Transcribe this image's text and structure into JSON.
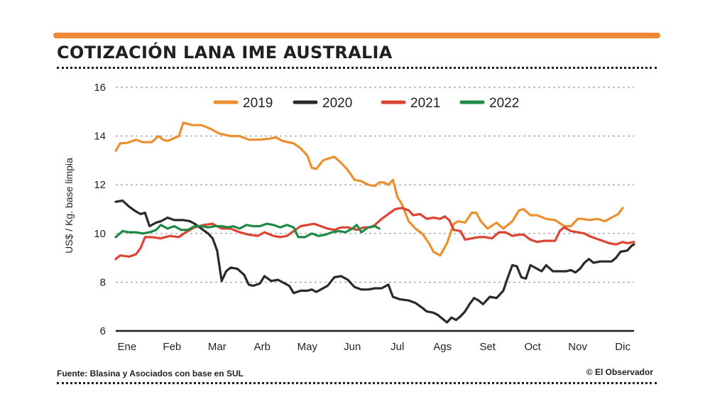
{
  "header": {
    "title": "COTIZACIÓN LANA IME AUSTRALIA"
  },
  "footer": {
    "source": "Fuente: Blasina y Asociados con base en SUL",
    "credit": "© El Observador"
  },
  "colors": {
    "accent": "#ee8833",
    "y2019": "#ee8f2d",
    "y2020": "#2a2a2a",
    "y2021": "#dd4433",
    "y2022": "#1e8a45"
  },
  "chart_data": {
    "type": "line",
    "title": "COTIZACIÓN LANA IME AUSTRALIA",
    "xlabel": "",
    "ylabel": "US$ / Kg. base limpia",
    "ylim": [
      6,
      16
    ],
    "xlim": [
      0,
      11.5
    ],
    "yticks": [
      6,
      8,
      10,
      12,
      14,
      16
    ],
    "months": [
      "Ene",
      "Feb",
      "Mar",
      "Arb",
      "May",
      "Jun",
      "Jul",
      "Ags",
      "Set",
      "Oct",
      "Nov",
      "Dic"
    ],
    "legend_position": "top",
    "series": [
      {
        "name": "2019",
        "color": "#ee8f2d",
        "points": [
          [
            0,
            13.4
          ],
          [
            0.1,
            13.7
          ],
          [
            0.25,
            13.72
          ],
          [
            0.45,
            13.85
          ],
          [
            0.6,
            13.75
          ],
          [
            0.8,
            13.75
          ],
          [
            0.95,
            14.0
          ],
          [
            1.05,
            13.85
          ],
          [
            1.15,
            13.8
          ],
          [
            1.4,
            14.0
          ],
          [
            1.5,
            14.55
          ],
          [
            1.7,
            14.45
          ],
          [
            1.9,
            14.45
          ],
          [
            2.1,
            14.3
          ],
          [
            2.3,
            14.1
          ],
          [
            2.55,
            14.0
          ],
          [
            2.75,
            14.0
          ],
          [
            2.95,
            13.85
          ],
          [
            3.2,
            13.85
          ],
          [
            3.45,
            13.9
          ],
          [
            3.55,
            13.95
          ],
          [
            3.7,
            13.8
          ],
          [
            3.95,
            13.7
          ],
          [
            4.1,
            13.5
          ],
          [
            4.25,
            13.2
          ],
          [
            4.35,
            12.7
          ],
          [
            4.45,
            12.65
          ],
          [
            4.6,
            13.0
          ],
          [
            4.75,
            13.1
          ],
          [
            4.85,
            13.15
          ],
          [
            5.0,
            12.9
          ],
          [
            5.15,
            12.6
          ],
          [
            5.3,
            12.2
          ],
          [
            5.45,
            12.15
          ],
          [
            5.6,
            12.0
          ],
          [
            5.75,
            11.95
          ],
          [
            5.85,
            12.1
          ],
          [
            5.95,
            12.1
          ],
          [
            6.05,
            12.0
          ],
          [
            6.15,
            12.2
          ],
          [
            6.25,
            11.5
          ],
          [
            6.35,
            11.2
          ],
          [
            6.5,
            10.5
          ],
          [
            6.65,
            10.2
          ],
          [
            6.8,
            10.0
          ],
          [
            6.95,
            9.6
          ],
          [
            7.05,
            9.25
          ],
          [
            7.2,
            9.1
          ],
          [
            7.35,
            9.6
          ],
          [
            7.5,
            10.4
          ],
          [
            7.6,
            10.5
          ],
          [
            7.75,
            10.45
          ],
          [
            7.9,
            10.85
          ],
          [
            8.0,
            10.85
          ],
          [
            8.1,
            10.5
          ],
          [
            8.25,
            10.2
          ],
          [
            8.45,
            10.45
          ],
          [
            8.6,
            10.2
          ],
          [
            8.8,
            10.5
          ],
          [
            8.95,
            10.95
          ],
          [
            9.05,
            11.0
          ],
          [
            9.2,
            10.75
          ],
          [
            9.35,
            10.75
          ],
          [
            9.55,
            10.6
          ],
          [
            9.75,
            10.55
          ],
          [
            9.95,
            10.3
          ],
          [
            10.1,
            10.3
          ],
          [
            10.25,
            10.6
          ],
          [
            10.35,
            10.6
          ],
          [
            10.5,
            10.55
          ],
          [
            10.7,
            10.6
          ],
          [
            10.85,
            10.5
          ],
          [
            11.0,
            10.65
          ],
          [
            11.15,
            10.8
          ],
          [
            11.25,
            11.05
          ]
        ]
      },
      {
        "name": "2020",
        "color": "#2a2a2a",
        "points": [
          [
            0,
            11.3
          ],
          [
            0.15,
            11.35
          ],
          [
            0.3,
            11.1
          ],
          [
            0.45,
            10.9
          ],
          [
            0.55,
            10.8
          ],
          [
            0.65,
            10.85
          ],
          [
            0.75,
            10.3
          ],
          [
            0.9,
            10.45
          ],
          [
            1.0,
            10.5
          ],
          [
            1.15,
            10.65
          ],
          [
            1.3,
            10.55
          ],
          [
            1.5,
            10.55
          ],
          [
            1.65,
            10.5
          ],
          [
            1.75,
            10.4
          ],
          [
            1.9,
            10.2
          ],
          [
            2.05,
            10.0
          ],
          [
            2.15,
            9.8
          ],
          [
            2.25,
            9.3
          ],
          [
            2.35,
            8.05
          ],
          [
            2.45,
            8.45
          ],
          [
            2.55,
            8.6
          ],
          [
            2.7,
            8.55
          ],
          [
            2.85,
            8.3
          ],
          [
            2.95,
            7.9
          ],
          [
            3.05,
            7.85
          ],
          [
            3.2,
            7.95
          ],
          [
            3.3,
            8.25
          ],
          [
            3.45,
            8.05
          ],
          [
            3.6,
            8.1
          ],
          [
            3.75,
            7.95
          ],
          [
            3.85,
            7.85
          ],
          [
            3.95,
            7.55
          ],
          [
            4.1,
            7.65
          ],
          [
            4.25,
            7.65
          ],
          [
            4.35,
            7.7
          ],
          [
            4.45,
            7.6
          ],
          [
            4.55,
            7.7
          ],
          [
            4.7,
            7.85
          ],
          [
            4.85,
            8.2
          ],
          [
            5.0,
            8.25
          ],
          [
            5.15,
            8.1
          ],
          [
            5.3,
            7.8
          ],
          [
            5.45,
            7.7
          ],
          [
            5.6,
            7.7
          ],
          [
            5.75,
            7.75
          ],
          [
            5.9,
            7.75
          ],
          [
            6.05,
            7.9
          ],
          [
            6.15,
            7.4
          ],
          [
            6.3,
            7.3
          ],
          [
            6.5,
            7.25
          ],
          [
            6.65,
            7.15
          ],
          [
            6.8,
            6.95
          ],
          [
            6.9,
            6.8
          ],
          [
            7.05,
            6.75
          ],
          [
            7.15,
            6.65
          ],
          [
            7.25,
            6.5
          ],
          [
            7.35,
            6.35
          ],
          [
            7.45,
            6.55
          ],
          [
            7.55,
            6.45
          ],
          [
            7.65,
            6.6
          ],
          [
            7.75,
            6.8
          ],
          [
            7.85,
            7.1
          ],
          [
            7.95,
            7.35
          ],
          [
            8.05,
            7.25
          ],
          [
            8.15,
            7.1
          ],
          [
            8.3,
            7.4
          ],
          [
            8.45,
            7.35
          ],
          [
            8.6,
            7.65
          ],
          [
            8.7,
            8.2
          ],
          [
            8.8,
            8.7
          ],
          [
            8.9,
            8.65
          ],
          [
            9.0,
            8.2
          ],
          [
            9.1,
            8.15
          ],
          [
            9.2,
            8.7
          ],
          [
            9.35,
            8.55
          ],
          [
            9.45,
            8.45
          ],
          [
            9.55,
            8.7
          ],
          [
            9.7,
            8.45
          ],
          [
            9.85,
            8.45
          ],
          [
            10.0,
            8.45
          ],
          [
            10.1,
            8.5
          ],
          [
            10.2,
            8.4
          ],
          [
            10.3,
            8.55
          ],
          [
            10.4,
            8.8
          ],
          [
            10.5,
            8.95
          ],
          [
            10.6,
            8.8
          ],
          [
            10.75,
            8.85
          ],
          [
            10.9,
            8.85
          ],
          [
            11.0,
            8.85
          ],
          [
            11.1,
            9.0
          ],
          [
            11.2,
            9.25
          ],
          [
            11.35,
            9.3
          ],
          [
            11.45,
            9.5
          ],
          [
            11.5,
            9.55
          ]
        ]
      },
      {
        "name": "2021",
        "color": "#dd4433",
        "points": [
          [
            0,
            8.95
          ],
          [
            0.1,
            9.1
          ],
          [
            0.3,
            9.05
          ],
          [
            0.45,
            9.15
          ],
          [
            0.55,
            9.4
          ],
          [
            0.65,
            9.85
          ],
          [
            0.8,
            9.85
          ],
          [
            1.0,
            9.8
          ],
          [
            1.2,
            9.9
          ],
          [
            1.4,
            9.85
          ],
          [
            1.55,
            10.05
          ],
          [
            1.75,
            10.25
          ],
          [
            1.95,
            10.35
          ],
          [
            2.15,
            10.4
          ],
          [
            2.35,
            10.2
          ],
          [
            2.55,
            10.2
          ],
          [
            2.75,
            10.05
          ],
          [
            2.95,
            9.95
          ],
          [
            3.15,
            9.9
          ],
          [
            3.3,
            10.05
          ],
          [
            3.5,
            9.9
          ],
          [
            3.65,
            9.85
          ],
          [
            3.8,
            9.9
          ],
          [
            3.95,
            10.1
          ],
          [
            4.1,
            10.3
          ],
          [
            4.25,
            10.35
          ],
          [
            4.4,
            10.4
          ],
          [
            4.55,
            10.3
          ],
          [
            4.7,
            10.2
          ],
          [
            4.85,
            10.15
          ],
          [
            5.0,
            10.25
          ],
          [
            5.15,
            10.25
          ],
          [
            5.35,
            10.15
          ],
          [
            5.5,
            10.25
          ],
          [
            5.65,
            10.25
          ],
          [
            5.75,
            10.35
          ],
          [
            5.9,
            10.6
          ],
          [
            6.05,
            10.8
          ],
          [
            6.2,
            11.0
          ],
          [
            6.35,
            11.05
          ],
          [
            6.5,
            10.95
          ],
          [
            6.6,
            10.75
          ],
          [
            6.75,
            10.8
          ],
          [
            6.9,
            10.6
          ],
          [
            7.05,
            10.65
          ],
          [
            7.2,
            10.6
          ],
          [
            7.3,
            10.7
          ],
          [
            7.4,
            10.55
          ],
          [
            7.5,
            10.15
          ],
          [
            7.65,
            10.1
          ],
          [
            7.75,
            9.75
          ],
          [
            7.9,
            9.8
          ],
          [
            8.05,
            9.85
          ],
          [
            8.2,
            9.85
          ],
          [
            8.35,
            9.8
          ],
          [
            8.5,
            10.05
          ],
          [
            8.65,
            10.05
          ],
          [
            8.8,
            9.9
          ],
          [
            8.95,
            9.95
          ],
          [
            9.05,
            9.95
          ],
          [
            9.2,
            9.75
          ],
          [
            9.35,
            9.65
          ],
          [
            9.5,
            9.7
          ],
          [
            9.65,
            9.7
          ],
          [
            9.75,
            9.7
          ],
          [
            9.85,
            10.1
          ],
          [
            9.95,
            10.25
          ],
          [
            10.1,
            10.1
          ],
          [
            10.25,
            10.05
          ],
          [
            10.4,
            10.0
          ],
          [
            10.5,
            9.9
          ],
          [
            10.65,
            9.8
          ],
          [
            10.8,
            9.7
          ],
          [
            10.95,
            9.6
          ],
          [
            11.1,
            9.55
          ],
          [
            11.25,
            9.65
          ],
          [
            11.35,
            9.6
          ],
          [
            11.5,
            9.65
          ]
        ]
      },
      {
        "name": "2022",
        "color": "#1e8a45",
        "points": [
          [
            0,
            9.85
          ],
          [
            0.15,
            10.1
          ],
          [
            0.3,
            10.05
          ],
          [
            0.45,
            10.05
          ],
          [
            0.6,
            10.0
          ],
          [
            0.75,
            10.05
          ],
          [
            0.9,
            10.15
          ],
          [
            1.0,
            10.35
          ],
          [
            1.15,
            10.2
          ],
          [
            1.3,
            10.3
          ],
          [
            1.45,
            10.15
          ],
          [
            1.6,
            10.15
          ],
          [
            1.75,
            10.3
          ],
          [
            1.9,
            10.3
          ],
          [
            2.05,
            10.25
          ],
          [
            2.2,
            10.3
          ],
          [
            2.35,
            10.3
          ],
          [
            2.5,
            10.25
          ],
          [
            2.6,
            10.3
          ],
          [
            2.75,
            10.2
          ],
          [
            2.9,
            10.35
          ],
          [
            3.05,
            10.3
          ],
          [
            3.2,
            10.3
          ],
          [
            3.35,
            10.4
          ],
          [
            3.5,
            10.35
          ],
          [
            3.65,
            10.25
          ],
          [
            3.8,
            10.35
          ],
          [
            3.95,
            10.25
          ],
          [
            4.05,
            9.85
          ],
          [
            4.2,
            9.85
          ],
          [
            4.35,
            10.0
          ],
          [
            4.5,
            9.9
          ],
          [
            4.65,
            9.95
          ],
          [
            4.8,
            10.05
          ],
          [
            4.95,
            10.1
          ],
          [
            5.1,
            10.05
          ],
          [
            5.25,
            10.2
          ],
          [
            5.35,
            10.35
          ],
          [
            5.45,
            10.05
          ],
          [
            5.6,
            10.25
          ],
          [
            5.75,
            10.3
          ],
          [
            5.85,
            10.2
          ]
        ]
      }
    ]
  }
}
